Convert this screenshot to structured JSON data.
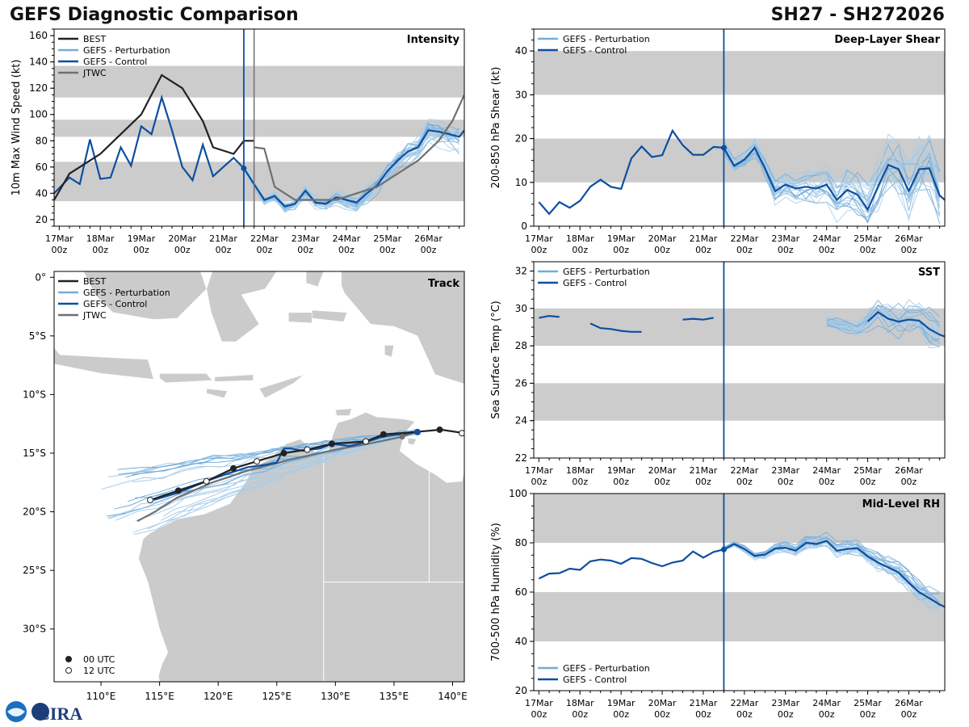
{
  "header": {
    "title_left": "GEFS Diagnostic Comparison",
    "title_right": "SH27 - SH272026"
  },
  "logo": {
    "text": "CIRA"
  },
  "colors": {
    "best": "#222222",
    "perturbation": "#74acd8",
    "perturbation_line": "#a8cde9",
    "control": "#0c4fa0",
    "jtwc": "#707070",
    "band": "#cccccc",
    "land": "#cbcbcb"
  },
  "time_axis": {
    "tick_labels": [
      "17Mar\n00z",
      "18Mar\n00z",
      "19Mar\n00z",
      "20Mar\n00z",
      "21Mar\n00z",
      "22Mar\n00z",
      "23Mar\n00z",
      "24Mar\n00z",
      "25Mar\n00z",
      "26Mar\n00z"
    ],
    "tick_hours": [
      0,
      24,
      48,
      72,
      96,
      120,
      144,
      168,
      192,
      216
    ],
    "range_hours": [
      -3,
      237
    ],
    "analysis_hour": 108,
    "jtwc_hour": 114
  },
  "chart_data": [
    {
      "id": "intensity",
      "type": "line",
      "title": "Intensity",
      "ylabel": "10m Max Wind Speed (kt)",
      "xlabel": "",
      "ylim": [
        15,
        165
      ],
      "yticks": [
        20,
        40,
        60,
        80,
        100,
        120,
        140,
        160
      ],
      "bands": [
        [
          34,
          64
        ],
        [
          83,
          96
        ],
        [
          113,
          137
        ]
      ],
      "legend": [
        "BEST",
        "GEFS - Perturbation",
        "GEFS - Control",
        "JTWC"
      ],
      "best": {
        "x": [
          -3,
          6,
          12,
          24,
          36,
          48,
          60,
          72,
          84,
          90,
          102,
          108,
          114
        ],
        "y": [
          35,
          55,
          60,
          70,
          85,
          100,
          130,
          120,
          95,
          75,
          70,
          80,
          80
        ]
      },
      "control": {
        "x": [
          -3,
          6,
          12,
          18,
          24,
          30,
          36,
          42,
          48,
          54,
          60,
          66,
          72,
          78,
          84,
          90,
          96,
          102,
          108,
          114,
          120,
          126,
          132,
          138,
          144,
          150,
          156,
          162,
          168,
          174,
          180,
          186,
          192,
          198,
          204,
          210,
          216,
          222,
          228,
          234,
          237
        ],
        "y": [
          40,
          52,
          47,
          81,
          51,
          52,
          75,
          61,
          91,
          85,
          113,
          88,
          60,
          50,
          77,
          53,
          60,
          67,
          59,
          47,
          35,
          38,
          30,
          32,
          42,
          33,
          32,
          37,
          35,
          33,
          40,
          46,
          57,
          65,
          72,
          75,
          88,
          87,
          85,
          83,
          88
        ]
      },
      "jtwc": {
        "x": [
          114,
          120,
          126,
          138,
          150,
          162,
          174,
          186,
          198,
          210,
          222,
          230,
          237
        ],
        "y": [
          75,
          74,
          45,
          35,
          35,
          35,
          40,
          45,
          55,
          65,
          80,
          95,
          115
        ]
      },
      "perturbation_stats": {
        "start_hour": 108,
        "end_hour": 237,
        "mean_end": 75,
        "spread_end": 12
      }
    },
    {
      "id": "shear",
      "type": "line",
      "title": "Deep-Layer Shear",
      "ylabel": "200-850 hPa Shear (kt)",
      "xlabel": "",
      "ylim": [
        0,
        45
      ],
      "yticks": [
        0,
        10,
        20,
        30,
        40
      ],
      "bands": [
        [
          10,
          20
        ],
        [
          30,
          40
        ]
      ],
      "legend": [
        "GEFS - Perturbation",
        "GEFS - Control"
      ],
      "control": {
        "x": [
          0,
          6,
          12,
          18,
          24,
          30,
          36,
          42,
          48,
          54,
          60,
          66,
          72,
          78,
          84,
          90,
          96,
          102,
          108,
          114,
          120,
          126,
          132,
          138,
          144,
          150,
          156,
          162,
          168,
          174,
          180,
          186,
          192,
          198,
          204,
          210,
          216,
          222,
          228,
          234,
          237
        ],
        "y": [
          5.5,
          2.8,
          5.5,
          4.2,
          5.8,
          9,
          10.6,
          9,
          8.5,
          15.5,
          18.2,
          15.8,
          16.2,
          21.8,
          18.5,
          16.3,
          16.3,
          18.1,
          17.9,
          13.8,
          15.2,
          17.9,
          13.2,
          8,
          9.5,
          8.6,
          9,
          8.6,
          9.5,
          6,
          8.3,
          7.2,
          3.8,
          9,
          14,
          13,
          8,
          13,
          13.2,
          7,
          6
        ]
      },
      "perturbation_stats": {
        "start_hour": 108,
        "end_hour": 237,
        "mean_end": 12,
        "spread_end": 8
      }
    },
    {
      "id": "sst",
      "type": "line",
      "title": "SST",
      "ylabel": "Sea Surface Temp (°C)",
      "xlabel": "",
      "ylim": [
        22,
        32.5
      ],
      "yticks": [
        22,
        24,
        26,
        28,
        30,
        32
      ],
      "bands": [
        [
          24,
          26
        ],
        [
          28,
          30
        ]
      ],
      "legend": [
        "GEFS - Perturbation",
        "GEFS - Control"
      ],
      "control_segments": [
        {
          "x": [
            0,
            6,
            12
          ],
          "y": [
            29.5,
            29.6,
            29.55
          ]
        },
        {
          "x": [
            30,
            36,
            42,
            48,
            54,
            60
          ],
          "y": [
            29.2,
            28.95,
            28.9,
            28.8,
            28.75,
            28.75
          ]
        },
        {
          "x": [
            84,
            90,
            96,
            102
          ],
          "y": [
            29.4,
            29.45,
            29.4,
            29.5
          ]
        },
        {
          "x": [
            192,
            198,
            204,
            210,
            216,
            222,
            228,
            234,
            237
          ],
          "y": [
            29.3,
            29.8,
            29.45,
            29.3,
            29.4,
            29.35,
            28.9,
            28.6,
            28.5
          ]
        }
      ],
      "perturbation_stats": {
        "start_hour": 168,
        "end_hour": 237,
        "mean_end": 27.8,
        "spread_end": 1.2
      }
    },
    {
      "id": "rh",
      "type": "line",
      "title": "Mid-Level RH",
      "ylabel": "700-500 hPa Humidity (%)",
      "xlabel": "",
      "ylim": [
        20,
        100
      ],
      "yticks": [
        20,
        40,
        60,
        80,
        100
      ],
      "bands": [
        [
          40,
          60
        ],
        [
          80,
          100
        ]
      ],
      "legend": [
        "GEFS - Perturbation",
        "GEFS - Control"
      ],
      "control": {
        "x": [
          0,
          6,
          12,
          18,
          24,
          30,
          36,
          42,
          48,
          54,
          60,
          66,
          72,
          78,
          84,
          90,
          96,
          102,
          108,
          114,
          120,
          126,
          132,
          138,
          144,
          150,
          156,
          162,
          168,
          174,
          180,
          186,
          192,
          198,
          204,
          210,
          216,
          222,
          228,
          234,
          237
        ],
        "y": [
          65.5,
          67.5,
          67.7,
          69.5,
          69,
          72.5,
          73.2,
          72.8,
          71.5,
          73.8,
          73.5,
          71.8,
          70.5,
          72,
          72.8,
          76.5,
          74,
          76.3,
          77.3,
          79.5,
          77.5,
          74.7,
          75.2,
          77.7,
          78,
          76.8,
          80,
          79.5,
          80.8,
          76.8,
          77.5,
          77.8,
          74.5,
          72,
          70,
          68,
          63.8,
          60,
          57.5,
          55,
          54
        ]
      },
      "perturbation_stats": {
        "start_hour": 108,
        "end_hour": 237,
        "mean_end": 58,
        "spread_end": 5
      }
    },
    {
      "id": "track",
      "type": "scatter",
      "title": "Track",
      "xlabel": "",
      "ylabel": "",
      "xlim": [
        106,
        141
      ],
      "ylim": [
        -34.5,
        0.5
      ],
      "xticks": [
        110,
        115,
        120,
        125,
        130,
        135,
        140
      ],
      "xtick_labels": [
        "110°E",
        "115°E",
        "120°E",
        "125°E",
        "130°E",
        "135°E",
        "140°E"
      ],
      "yticks": [
        0,
        -5,
        -10,
        -15,
        -20,
        -25,
        -30
      ],
      "ytick_labels": [
        "0°",
        "5°S",
        "10°S",
        "15°S",
        "20°S",
        "25°S",
        "30°S"
      ],
      "legend": [
        "BEST",
        "GEFS - Perturbation",
        "GEFS - Control",
        "JTWC"
      ],
      "point_legend": [
        "00 UTC",
        "12 UTC"
      ],
      "best": {
        "lon": [
          141,
          139,
          136.8,
          134.1,
          132.6,
          129.7,
          127.6,
          125.6,
          123.3,
          121.3,
          119,
          116.6,
          114.2
        ],
        "lat": [
          -13.3,
          -13,
          -13.2,
          -13.4,
          -14,
          -14.2,
          -14.7,
          -15,
          -15.7,
          -16.3,
          -17.4,
          -18.2,
          -19
        ]
      },
      "best_marks": [
        {
          "lon": 140.8,
          "lat": -13.3,
          "kind": "12"
        },
        {
          "lon": 138.9,
          "lat": -13.0,
          "kind": "00"
        },
        {
          "lon": 134.1,
          "lat": -13.4,
          "kind": "00"
        },
        {
          "lon": 132.6,
          "lat": -14.0,
          "kind": "12"
        },
        {
          "lon": 129.7,
          "lat": -14.2,
          "kind": "00"
        },
        {
          "lon": 127.6,
          "lat": -14.7,
          "kind": "12"
        },
        {
          "lon": 125.6,
          "lat": -15.0,
          "kind": "00"
        },
        {
          "lon": 123.3,
          "lat": -15.7,
          "kind": "12"
        },
        {
          "lon": 121.3,
          "lat": -16.3,
          "kind": "00"
        },
        {
          "lon": 119.0,
          "lat": -17.4,
          "kind": "12"
        },
        {
          "lon": 116.6,
          "lat": -18.2,
          "kind": "00"
        },
        {
          "lon": 114.2,
          "lat": -19.0,
          "kind": "12"
        }
      ],
      "control": {
        "lon": [
          137,
          135.5,
          134,
          132.8,
          131.2,
          129.8,
          128.7,
          127.2,
          126.2,
          125.6,
          125,
          124,
          122.5,
          121,
          119.5,
          118,
          116.5,
          114.5
        ],
        "lat": [
          -13.2,
          -13.4,
          -13.6,
          -14,
          -14.4,
          -14.2,
          -14.6,
          -14.8,
          -14.6,
          -14.6,
          -15.8,
          -16,
          -16.2,
          -16.7,
          -17.2,
          -17.8,
          -18.4,
          -19
        ]
      },
      "jtwc": {
        "lon": [
          136.8,
          135.7,
          132.8,
          129.5,
          126,
          122.5,
          119.5,
          116.5,
          114.6,
          113.1
        ],
        "lat": [
          -13.2,
          -13.6,
          -14.2,
          -14.8,
          -15.6,
          -16.5,
          -17.5,
          -18.8,
          -20,
          -20.8
        ]
      },
      "perturbation_stats": {
        "start_lon": 137,
        "start_lat": -13.2,
        "end_lon_min": 110,
        "end_lon_max": 115.5,
        "end_lat_min": -16,
        "end_lat_max": -22
      }
    }
  ]
}
